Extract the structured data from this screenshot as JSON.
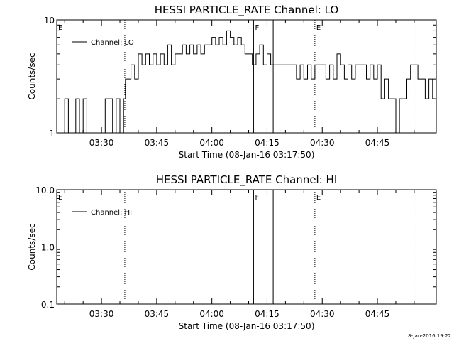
{
  "footer": {
    "stamp": "8-Jan-2016 19:22"
  },
  "chart_data": [
    {
      "type": "line",
      "title": "HESSI PARTICLE_RATE Channel: LO",
      "xlabel": "Start Time (08-Jan-16 03:17:50)",
      "ylabel": "Counts/sec",
      "yscale": "log",
      "xlim": [
        "03:17:50",
        "05:01:00"
      ],
      "ylim": [
        1,
        10
      ],
      "y_ticks": [
        "1",
        "10"
      ],
      "x_ticks": [
        "03:30",
        "03:45",
        "04:00",
        "04:15",
        "04:30",
        "04:45"
      ],
      "legend": {
        "label": "Channel: LO",
        "placement": "top-left"
      },
      "grid": false,
      "event_lines": [
        {
          "time": "03:36:20",
          "style": "dotted",
          "label": ""
        },
        {
          "time": "04:28:00",
          "style": "dotted",
          "label": "E"
        },
        {
          "time": "04:55:30",
          "style": "dotted",
          "label": ""
        },
        {
          "time": "04:11:20",
          "style": "solid",
          "label": "F"
        },
        {
          "time": "04:16:40",
          "style": "solid",
          "label": ""
        }
      ],
      "edge_markers": [
        {
          "time": "03:17:50",
          "label": "E"
        }
      ],
      "series": [
        {
          "x": [
            "03:18",
            "03:20",
            "03:21",
            "03:23",
            "03:24",
            "03:25",
            "03:26",
            "03:27",
            "03:28",
            "03:30",
            "03:31",
            "03:33",
            "03:34",
            "03:35",
            "03:36",
            "03:36:30",
            "03:37",
            "03:38",
            "03:39",
            "03:40",
            "03:41",
            "03:42",
            "03:43",
            "03:44",
            "03:45",
            "03:46",
            "03:47",
            "03:48",
            "03:49",
            "03:50",
            "03:51",
            "03:52",
            "03:53",
            "03:54",
            "03:55",
            "03:56",
            "03:57",
            "03:58",
            "03:59",
            "04:00",
            "04:01",
            "04:02",
            "04:03",
            "04:04",
            "04:05",
            "04:06",
            "04:07",
            "04:08",
            "04:09",
            "04:10",
            "04:11",
            "04:12",
            "04:13",
            "04:14",
            "04:15",
            "04:16",
            "04:18",
            "04:20",
            "04:22",
            "04:23",
            "04:24",
            "04:25",
            "04:26",
            "04:27",
            "04:28",
            "04:29",
            "04:30",
            "04:31",
            "04:32",
            "04:33",
            "04:34",
            "04:35",
            "04:36",
            "04:37",
            "04:38",
            "04:39",
            "04:40",
            "04:41",
            "04:42",
            "04:43",
            "04:44",
            "04:45",
            "04:46",
            "04:47",
            "04:48",
            "04:49",
            "04:50",
            "04:51",
            "04:52",
            "04:53",
            "04:54",
            "04:55",
            "04:56",
            "04:57",
            "04:58",
            "04:59",
            "05:00"
          ],
          "y": [
            1,
            2,
            1,
            2,
            1,
            2,
            1,
            1,
            1,
            1,
            2,
            1,
            2,
            1,
            2,
            3,
            3,
            4,
            3,
            5,
            4,
            5,
            4,
            5,
            4,
            5,
            4,
            6,
            4,
            5,
            5,
            6,
            5,
            6,
            5,
            6,
            5,
            6,
            6,
            7,
            6,
            7,
            6,
            8,
            7,
            6,
            7,
            6,
            5,
            5,
            4,
            5,
            6,
            4,
            5,
            4,
            4,
            4,
            4,
            3,
            4,
            3,
            4,
            3,
            4,
            4,
            4,
            3,
            4,
            3,
            5,
            4,
            3,
            4,
            3,
            4,
            4,
            4,
            3,
            4,
            3,
            4,
            2,
            3,
            2,
            2,
            1,
            2,
            2,
            3,
            4,
            4,
            3,
            3,
            2,
            3,
            2
          ]
        }
      ]
    },
    {
      "type": "line",
      "title": "HESSI PARTICLE_RATE Channel: HI",
      "xlabel": "Start Time (08-Jan-16 03:17:50)",
      "ylabel": "Counts/sec",
      "yscale": "log",
      "xlim": [
        "03:17:50",
        "05:01:00"
      ],
      "ylim": [
        0.1,
        10
      ],
      "y_ticks": [
        "0.1",
        "1.0",
        "10.0"
      ],
      "x_ticks": [
        "03:30",
        "03:45",
        "04:00",
        "04:15",
        "04:30",
        "04:45"
      ],
      "legend": {
        "label": "Channel: HI",
        "placement": "top-left"
      },
      "grid": false,
      "event_lines": [
        {
          "time": "03:36:20",
          "style": "dotted",
          "label": ""
        },
        {
          "time": "04:28:00",
          "style": "dotted",
          "label": "E"
        },
        {
          "time": "04:55:30",
          "style": "dotted",
          "label": ""
        },
        {
          "time": "04:11:20",
          "style": "solid",
          "label": "F"
        },
        {
          "time": "04:16:40",
          "style": "solid",
          "label": ""
        }
      ],
      "edge_markers": [
        {
          "time": "03:17:50",
          "label": "E"
        }
      ],
      "series": [
        {
          "x": [],
          "y": []
        }
      ]
    }
  ]
}
